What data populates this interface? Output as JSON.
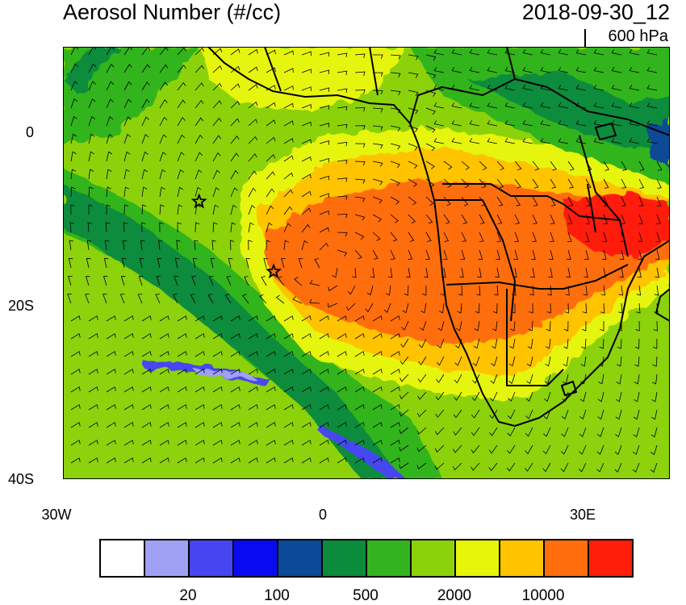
{
  "header": {
    "title": "Aerosol Number (#/cc)",
    "datetime": "2018-09-30_12",
    "level": "600 hPa"
  },
  "axes": {
    "y_ticks": [
      {
        "label": "0",
        "lat": 0
      },
      {
        "label": "20S",
        "lat": -20
      },
      {
        "label": "40S",
        "lat": -40
      }
    ],
    "x_ticks": [
      {
        "label": "30W",
        "lon": -30
      },
      {
        "label": "0",
        "lon": 0
      },
      {
        "label": "30E",
        "lon": 30
      }
    ],
    "lon_range": [
      -30,
      40
    ],
    "lat_range": [
      -40,
      10
    ]
  },
  "markers": [
    {
      "type": "star",
      "lon": -14.3,
      "lat": -7.9
    },
    {
      "type": "star",
      "lon": -5.7,
      "lat": -16.0
    }
  ],
  "colorbar": {
    "colors": [
      "#ffffff",
      "#a0a0f4",
      "#4646f0",
      "#0a0af0",
      "#0a4a96",
      "#0a8c3c",
      "#32b41e",
      "#8cd20a",
      "#e6f50a",
      "#ffc300",
      "#ff6e0a",
      "#ff1e0a"
    ],
    "labels": [
      "20",
      "100",
      "500",
      "2000",
      "10000"
    ]
  }
}
